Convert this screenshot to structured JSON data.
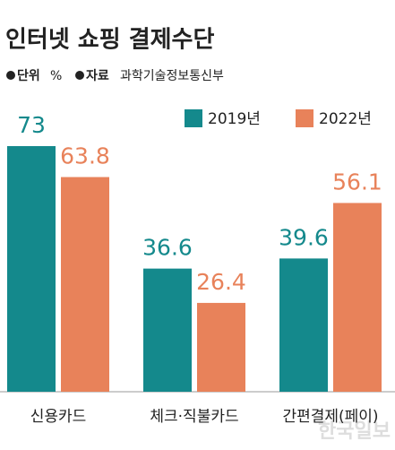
{
  "chart_data": {
    "type": "bar",
    "title": "인터넷 쇼핑 결제수단",
    "unit_label": "단위",
    "unit": "%",
    "source_label": "자료",
    "source": "과학기술정보통신부",
    "categories": [
      "신용카드",
      "체크·직불카드",
      "간편결제(페이)"
    ],
    "series": [
      {
        "name": "2019년",
        "color": "#14898c",
        "values": [
          73,
          36.6,
          39.6
        ]
      },
      {
        "name": "2022년",
        "color": "#e8825a",
        "values": [
          63.8,
          26.4,
          56.1
        ]
      }
    ],
    "ylim": [
      0,
      73
    ],
    "watermark": "한국일보"
  }
}
